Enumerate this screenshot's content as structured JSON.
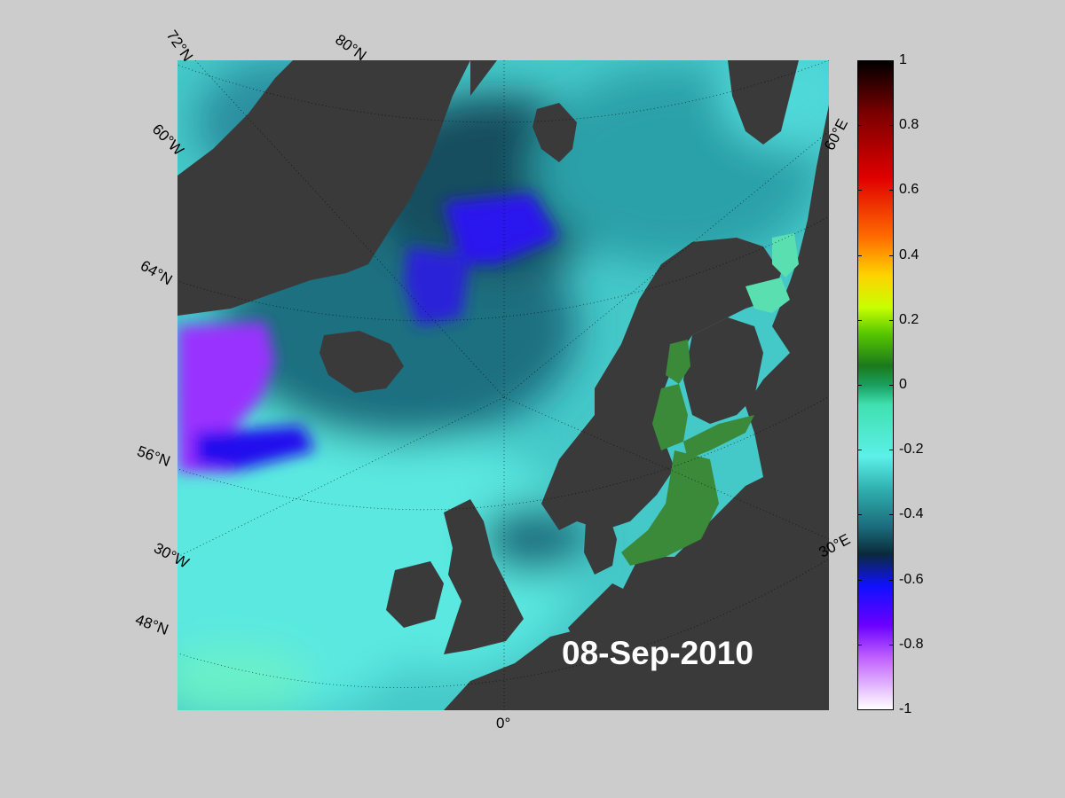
{
  "date": "08-Sep-2010",
  "colorbar": {
    "ticks": [
      "1",
      "0.8",
      "0.6",
      "0.4",
      "0.2",
      "0",
      "-0.2",
      "-0.4",
      "-0.6",
      "-0.8",
      "-1"
    ],
    "min": -1,
    "max": 1
  },
  "grid_labels": {
    "lat_72": "72°N",
    "lat_80": "80°N",
    "lat_64": "64°N",
    "lat_56": "56°N",
    "lat_48": "48°N",
    "lon_60w": "60°W",
    "lon_30w": "30°W",
    "lon_0": "0°",
    "lon_60e": "60°E",
    "lon_30e": "30°E"
  },
  "colors": {
    "land": "#3a3a3a",
    "ocean_cyan": "#5ae8e0",
    "ocean_dark": "#1a5a70",
    "anomaly_blue": "#1a10ee",
    "anomaly_purple": "#8a30ff",
    "baltic_green": "#3a8a3a",
    "background": "#cccccc"
  }
}
